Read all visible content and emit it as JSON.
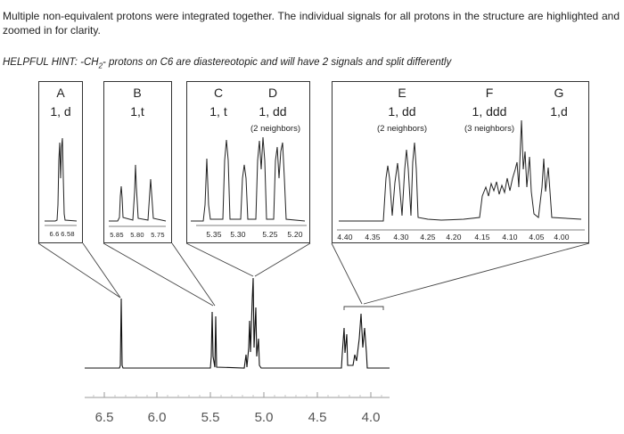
{
  "intro_text": "Multiple non-equivalent protons were integrated together. The individual signals for all protons in the structure are highlighted and zoomed in for clarity.",
  "hint": {
    "prefix": "HELPFUL HINT: -CH",
    "subscript": "2",
    "suffix": "- protons on C6 are diastereotopic and will have 2 signals and split differently"
  },
  "panels": {
    "A": {
      "letter": "A",
      "mult": "1, d",
      "ticks": [
        "6.6",
        "6.58"
      ]
    },
    "B": {
      "letter": "B",
      "mult": "1,t",
      "ticks": [
        "5.85",
        "5.80",
        "5.75"
      ]
    },
    "CD": {
      "letter_c": "C",
      "mult_c": "1, t",
      "letter_d": "D",
      "mult_d": "1, dd",
      "note_d": "(2 neighbors)",
      "ticks": [
        "5.35",
        "5.30",
        "5.25",
        "5.20"
      ]
    },
    "EFG": {
      "letter_e": "E",
      "mult_e": "1, dd",
      "note_e": "(2 neighbors)",
      "letter_f": "F",
      "mult_f": "1, ddd",
      "note_f": "(3 neighbors)",
      "letter_g": "G",
      "mult_g": "1,d",
      "ticks": [
        "4.40",
        "4.35",
        "4.30",
        "4.25",
        "4.20",
        "4.15",
        "4.10",
        "4.05",
        "4.00"
      ]
    }
  },
  "main_axis": {
    "ticks": [
      "6.5",
      "6.0",
      "5.5",
      "5.0",
      "4.5",
      "4.0"
    ]
  },
  "colors": {
    "line": "#222222",
    "axis": "#888888",
    "text": "#555555"
  }
}
